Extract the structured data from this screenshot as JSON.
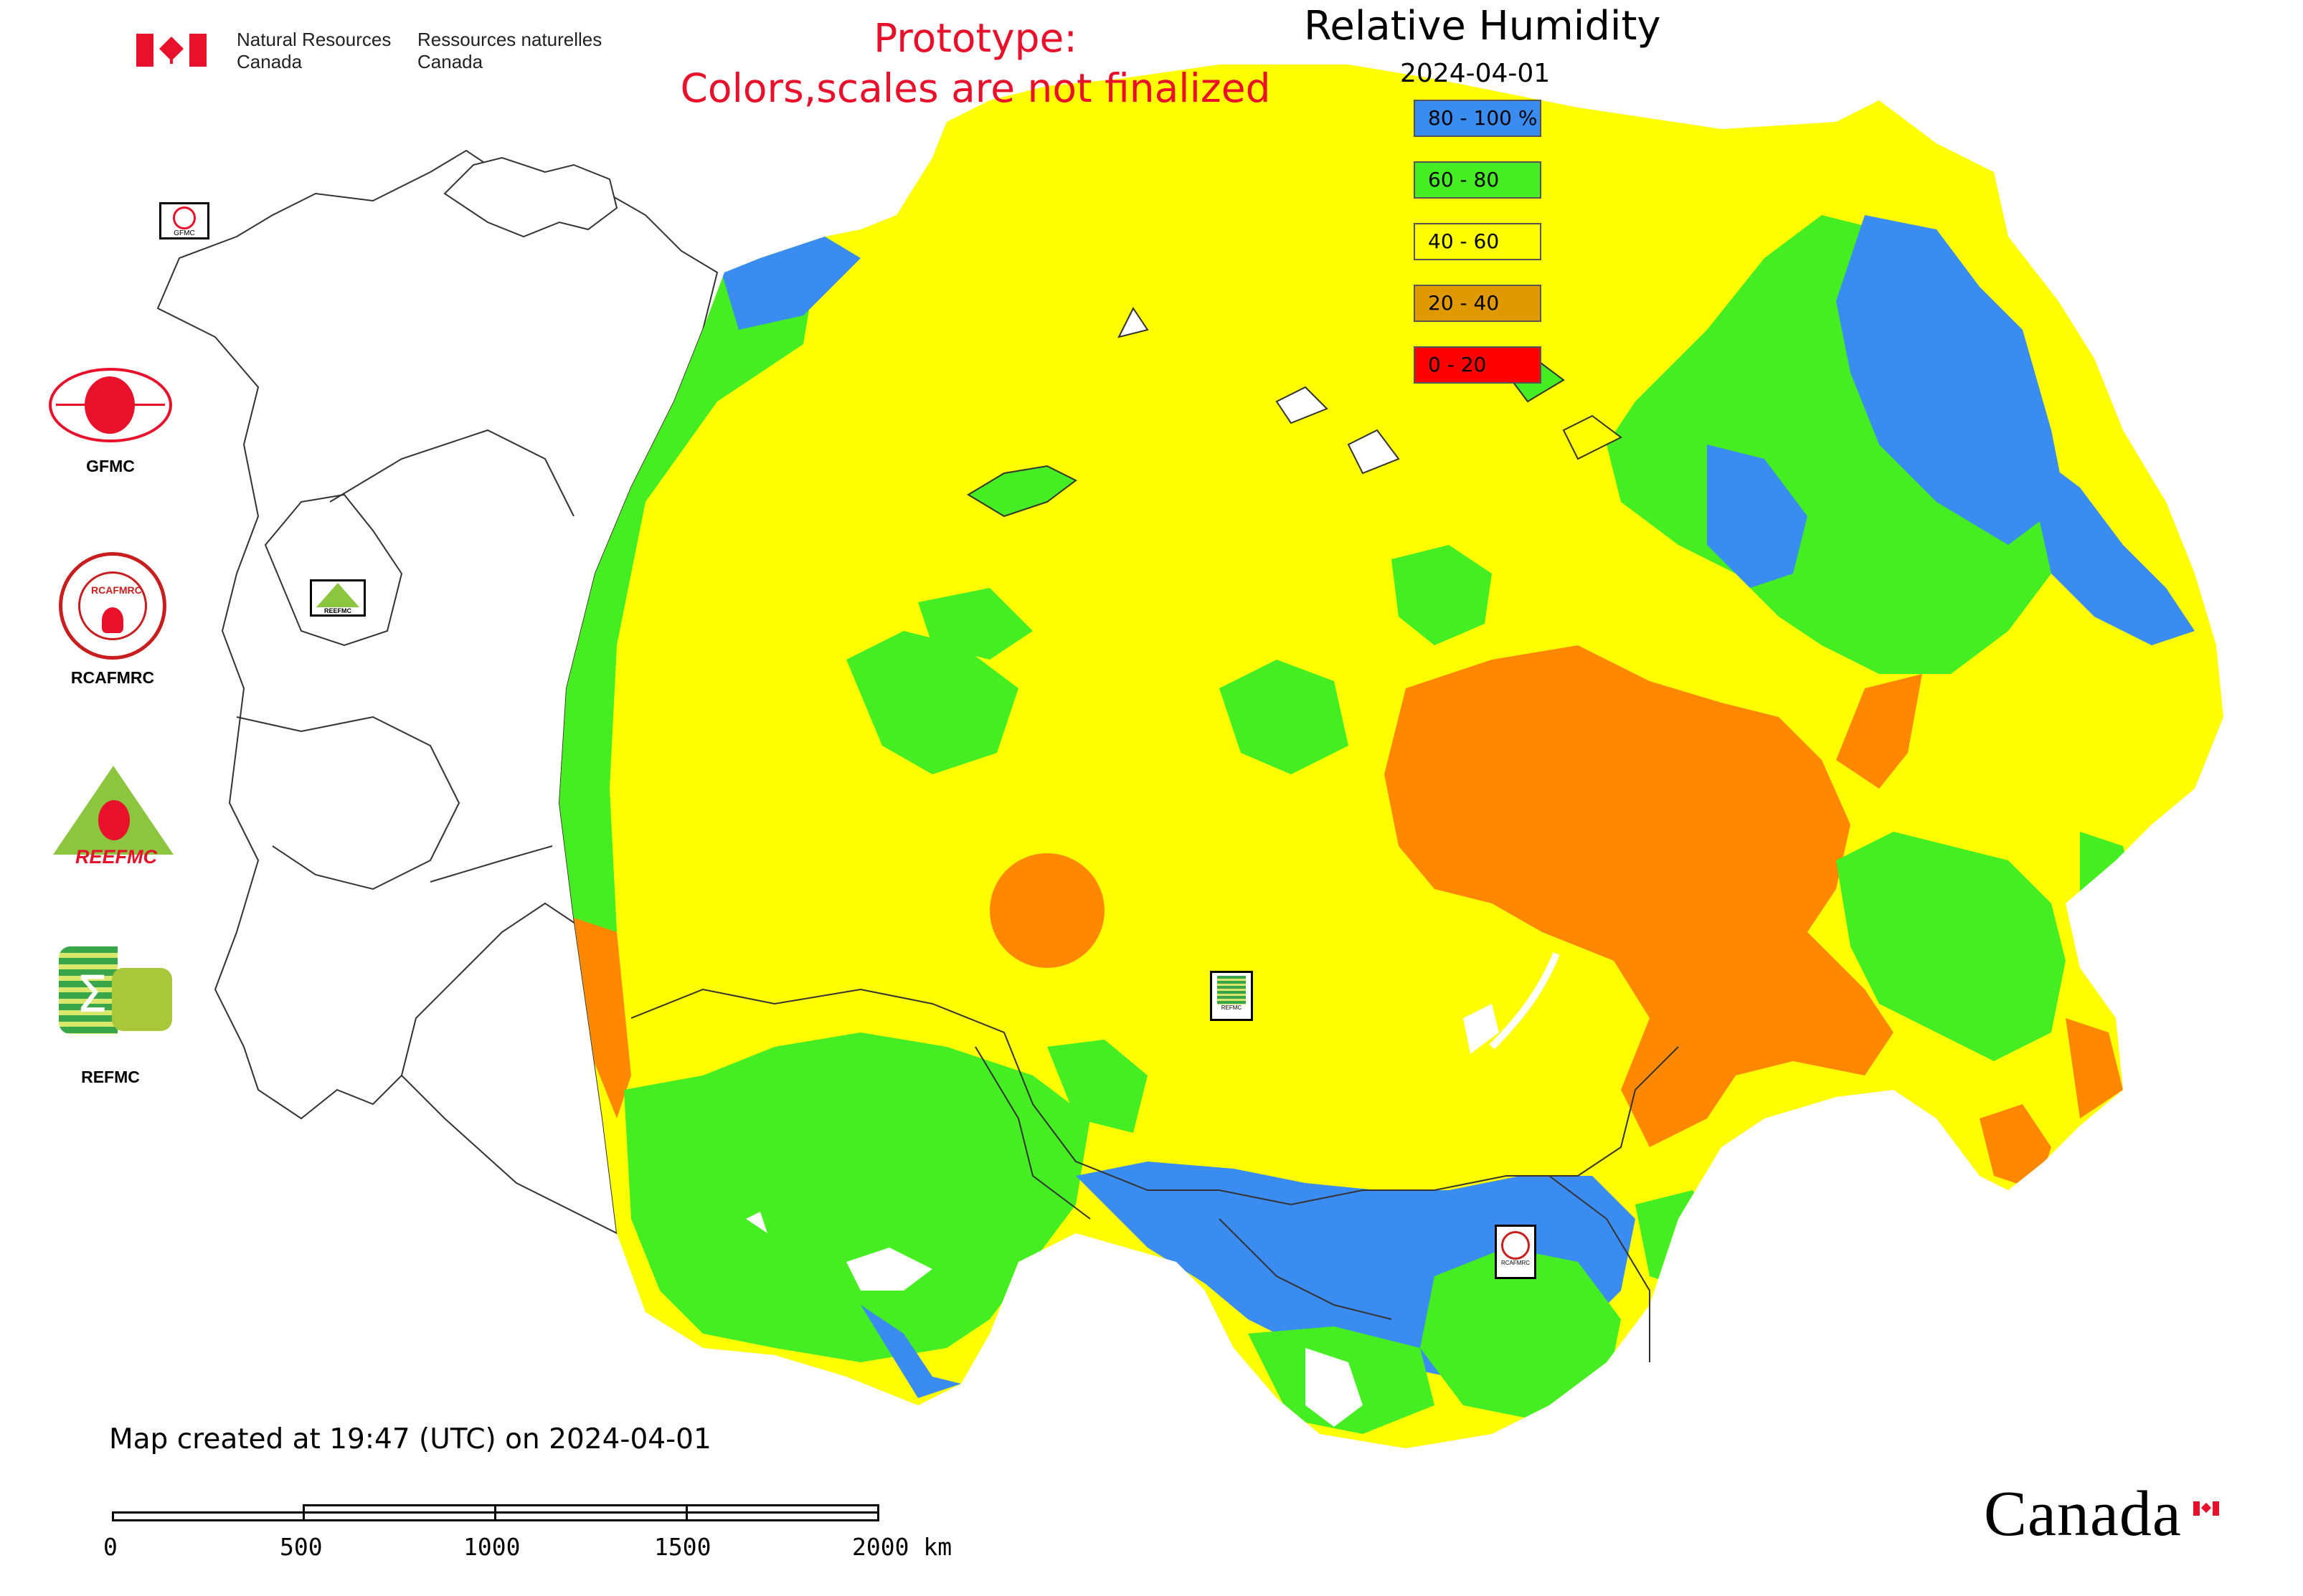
{
  "header": {
    "government_en_line1": "Natural Resources",
    "government_en_line2": "Canada",
    "government_fr_line1": "Ressources naturelles",
    "government_fr_line2": "Canada"
  },
  "notice": {
    "line1": "Prototype:",
    "line2": "Colors,scales are not finalized",
    "color": "#e8102a"
  },
  "map": {
    "title": "Relative Humidity",
    "date": "2024-04-01",
    "legend": [
      {
        "label": "80 - 100 %",
        "color": "#3a8cf0"
      },
      {
        "label": "60 - 80",
        "color": "#44ee22"
      },
      {
        "label": "40 - 60",
        "color": "#ffff00"
      },
      {
        "label": "20 - 40",
        "color": "#e09a00"
      },
      {
        "label": "0 - 20",
        "color": "#ff0000"
      }
    ]
  },
  "organizations": {
    "gfmc": "GFMC",
    "rcafmrc": "RCAFMRC",
    "reefmc_text": "REEFMC",
    "refmc": "REFMC",
    "gfmc_marker_text": "GFMC",
    "rcafmrc_marker_text": "RCAFMRC",
    "refmc_marker_text": "REFMC",
    "rcafmrc_logo_text": "RCAFMRC",
    "reefmc_marker_text": "REEFMC"
  },
  "footer": {
    "created_text": "Map created at 19:47 (UTC) on 2024-04-01",
    "scale_labels": [
      "0",
      "500",
      "1000",
      "1500",
      "2000 km"
    ],
    "wordmark": "Canada"
  }
}
